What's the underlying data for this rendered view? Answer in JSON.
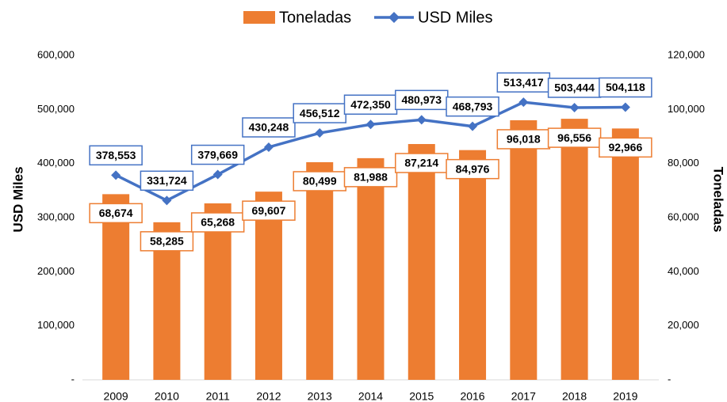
{
  "chart_data": {
    "type": "bar",
    "categories": [
      "2009",
      "2010",
      "2011",
      "2012",
      "2013",
      "2014",
      "2015",
      "2016",
      "2017",
      "2018",
      "2019"
    ],
    "series": [
      {
        "name": "Toneladas",
        "type": "bar",
        "axis": "y2",
        "color": "#ed7d31",
        "values": [
          68674,
          58285,
          65268,
          69607,
          80499,
          81988,
          87214,
          84976,
          96018,
          96556,
          92966
        ],
        "value_labels": [
          "68,674",
          "58,285",
          "65,268",
          "69,607",
          "80,499",
          "81,988",
          "87,214",
          "84,976",
          "96,018",
          "96,556",
          "92,966"
        ]
      },
      {
        "name": "USD Miles",
        "type": "line",
        "axis": "y",
        "color": "#4472c4",
        "values": [
          378553,
          331724,
          379669,
          430248,
          456512,
          472350,
          480973,
          468793,
          513417,
          503444,
          504118
        ],
        "value_labels": [
          "378,553",
          "331,724",
          "379,669",
          "430,248",
          "456,512",
          "472,350",
          "480,973",
          "468,793",
          "513,417",
          "503,444",
          "504,118"
        ]
      }
    ],
    "ylabel": "USD Miles",
    "y2label": "Toneladas",
    "ylim": [
      0,
      600000
    ],
    "yticks": [
      {
        "value": 0,
        "label": "-"
      },
      {
        "value": 100000,
        "label": "100,000"
      },
      {
        "value": 200000,
        "label": "200,000"
      },
      {
        "value": 300000,
        "label": "300,000"
      },
      {
        "value": 400000,
        "label": "400,000"
      },
      {
        "value": 500000,
        "label": "500,000"
      },
      {
        "value": 600000,
        "label": "600,000"
      }
    ],
    "y2lim": [
      0,
      120000
    ],
    "y2ticks": [
      {
        "value": 0,
        "label": "-"
      },
      {
        "value": 20000,
        "label": "20,000"
      },
      {
        "value": 40000,
        "label": "40,000"
      },
      {
        "value": 60000,
        "label": "60,000"
      },
      {
        "value": 80000,
        "label": "80,000"
      },
      {
        "value": 100000,
        "label": "100,000"
      },
      {
        "value": 120000,
        "label": "120,000"
      }
    ],
    "legend": "top",
    "grid": false
  }
}
